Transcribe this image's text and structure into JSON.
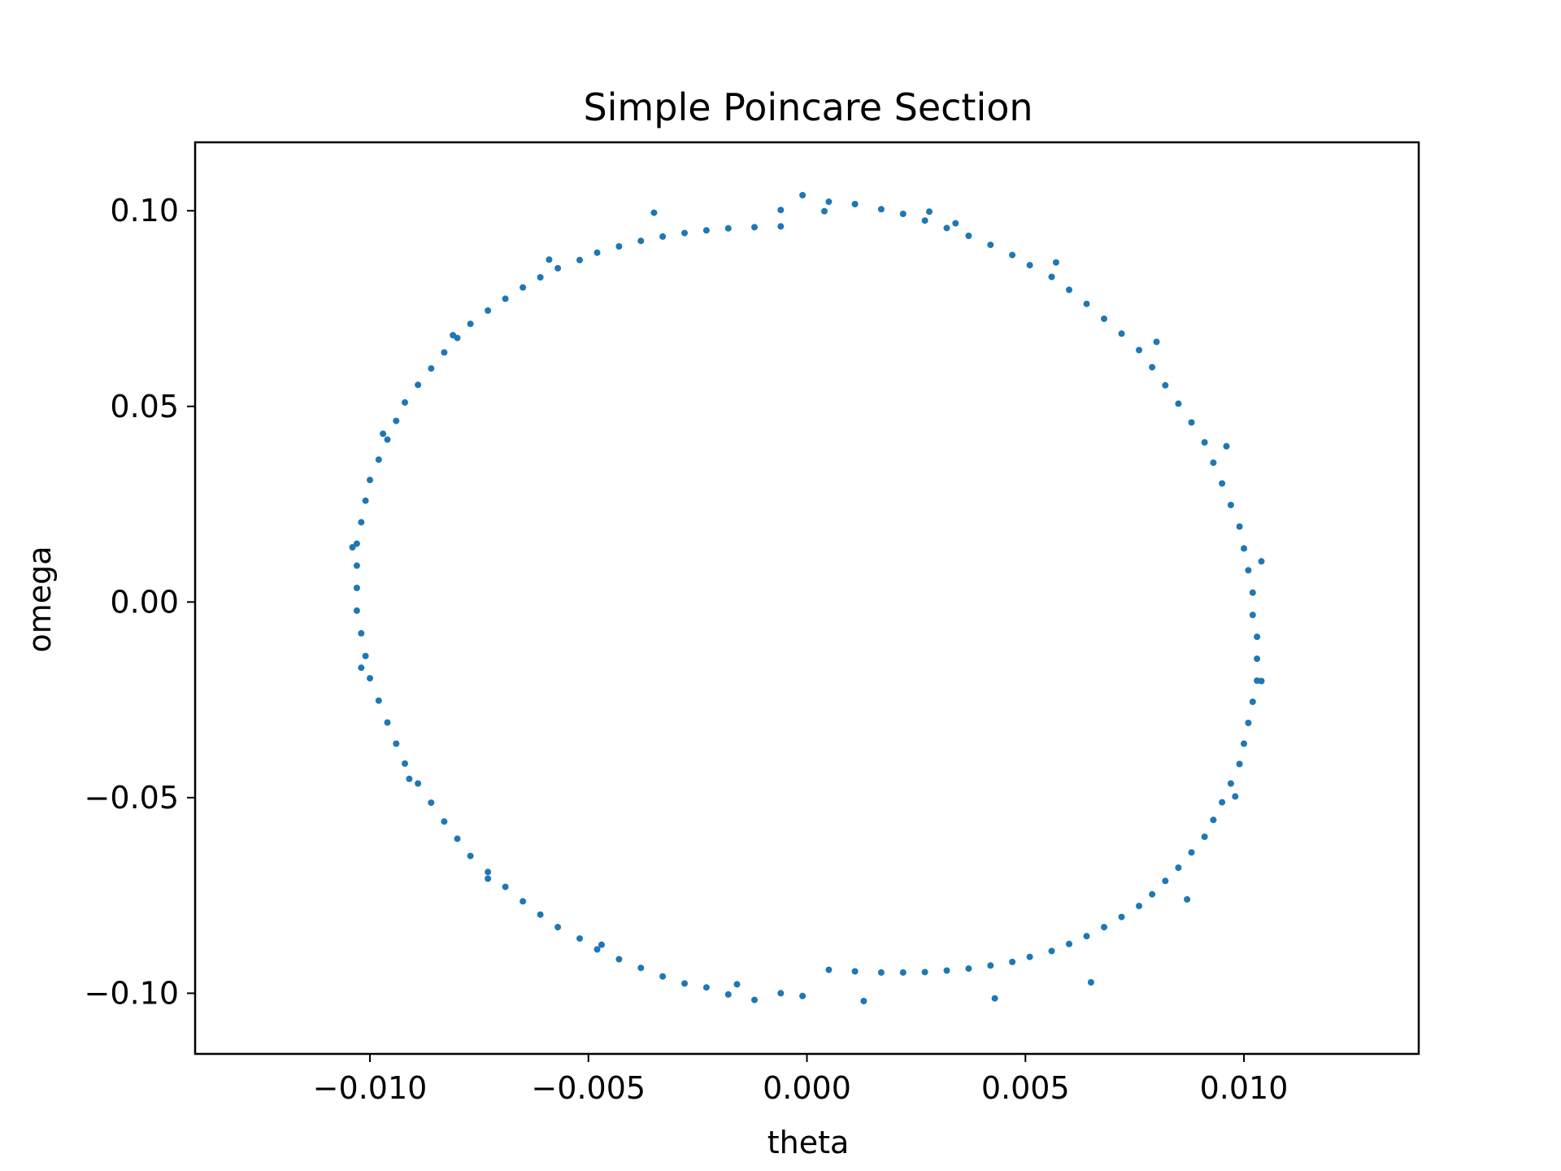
{
  "chart_data": {
    "type": "scatter",
    "title": "Simple Poincare Section",
    "xlabel": "theta",
    "ylabel": "omega",
    "xlim": [
      -0.014,
      0.014
    ],
    "ylim": [
      -0.1155,
      0.1175
    ],
    "xticks": [
      -0.01,
      -0.005,
      0.0,
      0.005,
      0.01
    ],
    "xtick_labels": [
      "−0.010",
      "−0.005",
      "0.000",
      "0.005",
      "0.010"
    ],
    "yticks": [
      -0.1,
      -0.05,
      0.0,
      0.05,
      0.1
    ],
    "ytick_labels": [
      "−0.10",
      "−0.05",
      "0.00",
      "0.05",
      "0.10"
    ],
    "grid": false,
    "legend": "none",
    "marker_color": "#1f77b4",
    "series": [
      {
        "x": [
          -0.0001,
          0.0005,
          0.0011,
          0.0017,
          0.0022,
          0.0027,
          0.0032,
          0.0037,
          0.0042,
          0.0047,
          0.0051,
          0.0056,
          0.006,
          0.0064,
          0.0068,
          0.0072,
          0.0076,
          0.0079,
          0.0082,
          0.0085,
          0.0088,
          0.0091,
          0.0093,
          0.0095,
          0.0097,
          0.0099,
          0.01,
          0.0101,
          0.0102,
          0.0102,
          0.0103,
          0.0103,
          0.0103,
          0.0102,
          0.0101,
          0.01,
          0.0099,
          0.0097,
          0.0095,
          0.0093,
          0.0091,
          0.0088,
          0.0085,
          0.0082,
          0.0079,
          0.0076,
          0.0072,
          0.0068,
          0.0064,
          0.006,
          0.0056,
          0.0051,
          0.0047,
          0.0042,
          0.0037,
          0.0032,
          0.0027,
          0.0022,
          0.0017,
          0.0011,
          0.0005,
          -0.0001,
          -0.0006,
          -0.0012,
          -0.0018,
          -0.0023,
          -0.0028,
          -0.0033,
          -0.0038,
          -0.0043,
          -0.0048,
          -0.0052,
          -0.0057,
          -0.0061,
          -0.0065,
          -0.0069,
          -0.0073,
          -0.0077,
          -0.008,
          -0.0083,
          -0.0086,
          -0.0089,
          -0.0092,
          -0.0094,
          -0.0096,
          -0.0098,
          -0.01,
          -0.0101,
          -0.0102,
          -0.0103,
          -0.0103,
          -0.0103,
          -0.0103,
          -0.0102,
          -0.0101,
          -0.01,
          -0.0098,
          -0.0096,
          -0.0094,
          -0.0092,
          -0.0089,
          -0.0086,
          -0.0083,
          -0.008,
          -0.0077,
          -0.0073,
          -0.0069,
          -0.0065,
          -0.0061,
          -0.0057,
          -0.0052,
          -0.0048,
          -0.0043,
          -0.0038,
          -0.0033,
          -0.0028,
          -0.0023,
          -0.0018,
          -0.0012,
          -0.0006,
          0.0004,
          0.0028,
          0.0034,
          0.0057,
          0.008,
          0.0096,
          0.0104,
          0.0104,
          0.0098,
          0.0087,
          0.0065,
          0.0043,
          0.0013,
          -0.0016,
          -0.0047,
          -0.0073,
          -0.0091,
          -0.0102,
          -0.0104,
          -0.0097,
          -0.0081,
          -0.0059,
          -0.0035,
          -0.0006
        ],
        "y": [
          0.104,
          0.1023,
          0.1017,
          0.1004,
          0.0992,
          0.0975,
          0.0956,
          0.0936,
          0.0913,
          0.0887,
          0.0861,
          0.0831,
          0.0798,
          0.0762,
          0.0724,
          0.0686,
          0.0644,
          0.06,
          0.0554,
          0.0507,
          0.0459,
          0.0408,
          0.0356,
          0.0303,
          0.0248,
          0.0193,
          0.0137,
          0.0081,
          0.0024,
          -0.0033,
          -0.0089,
          -0.0145,
          -0.0201,
          -0.0255,
          -0.0309,
          -0.0362,
          -0.0414,
          -0.0464,
          -0.0512,
          -0.0557,
          -0.06,
          -0.064,
          -0.0679,
          -0.0713,
          -0.0747,
          -0.0777,
          -0.0805,
          -0.0831,
          -0.0854,
          -0.0874,
          -0.0892,
          -0.0907,
          -0.092,
          -0.0929,
          -0.0937,
          -0.0942,
          -0.0946,
          -0.0947,
          -0.0947,
          -0.0944,
          -0.094,
          -0.1007,
          -0.1,
          -0.1017,
          -0.1003,
          -0.0985,
          -0.0975,
          -0.0957,
          -0.0935,
          -0.0913,
          -0.0888,
          -0.086,
          -0.0831,
          -0.0799,
          -0.0765,
          -0.0728,
          -0.069,
          -0.0649,
          -0.0605,
          -0.0561,
          -0.0513,
          -0.0464,
          -0.0413,
          -0.0362,
          -0.0308,
          -0.0252,
          -0.0195,
          -0.0138,
          -0.008,
          -0.0022,
          0.0036,
          0.0093,
          0.0149,
          0.0204,
          0.0259,
          0.0312,
          0.0364,
          0.0415,
          0.0463,
          0.051,
          0.0555,
          0.0597,
          0.0638,
          0.0675,
          0.0711,
          0.0745,
          0.0775,
          0.0804,
          0.083,
          0.0853,
          0.0874,
          0.0893,
          0.0909,
          0.0923,
          0.0934,
          0.0943,
          0.095,
          0.0955,
          0.0958,
          0.096,
          0.0999,
          0.0998,
          0.0968,
          0.0868,
          0.0665,
          0.0398,
          0.0104,
          -0.0202,
          -0.0497,
          -0.076,
          -0.0972,
          -0.1013,
          -0.102,
          -0.0977,
          -0.0876,
          -0.0707,
          -0.0452,
          -0.0168,
          0.014,
          0.043,
          0.0682,
          0.0875,
          0.0995,
          0.1002
        ]
      }
    ]
  }
}
